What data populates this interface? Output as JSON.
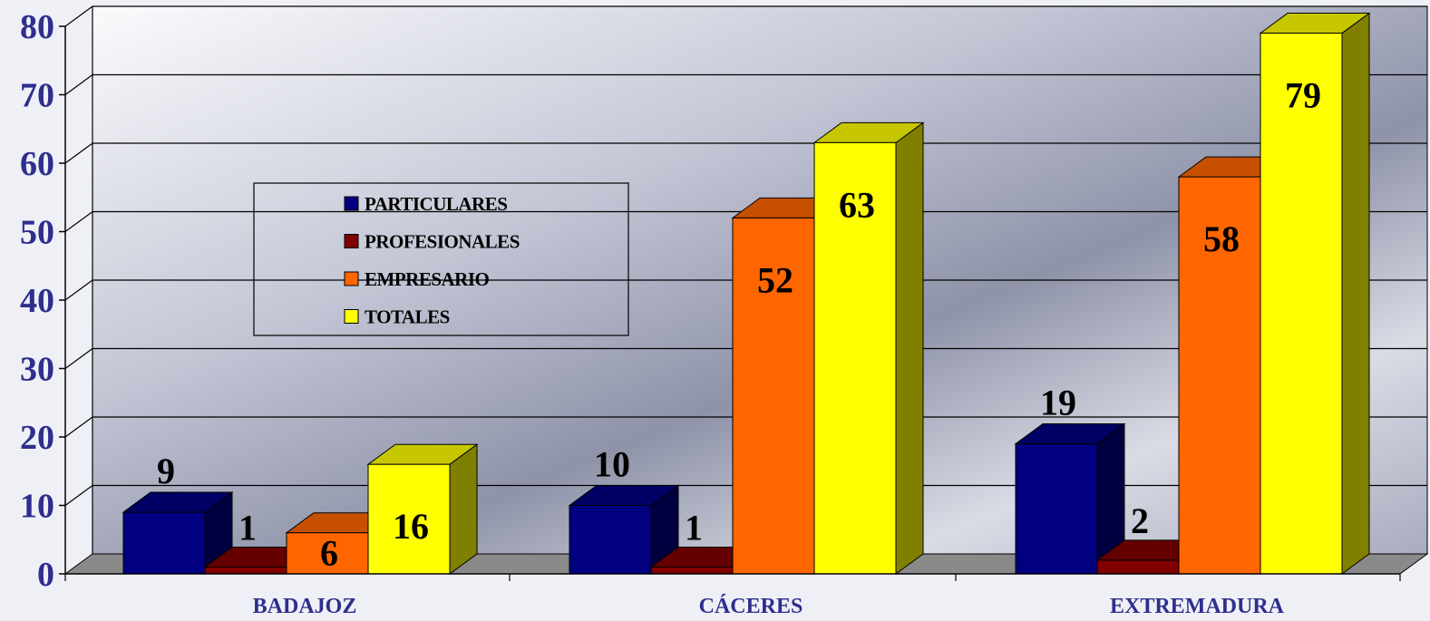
{
  "chart_data": {
    "type": "bar",
    "categories": [
      "BADAJOZ",
      "CÁCERES",
      "EXTREMADURA"
    ],
    "series": [
      {
        "name": "PARTICULARES",
        "values": [
          9,
          10,
          19
        ],
        "color": "#000080"
      },
      {
        "name": "PROFESIONALES",
        "values": [
          1,
          1,
          2
        ],
        "color": "#800000"
      },
      {
        "name": "EMPRESARIO",
        "values": [
          6,
          52,
          58
        ],
        "color": "#FF6600"
      },
      {
        "name": "TOTALES",
        "values": [
          16,
          63,
          79
        ],
        "color": "#FFFF00"
      }
    ],
    "ylim": [
      0,
      80
    ],
    "yticks": [
      "0",
      "10",
      "20",
      "30",
      "40",
      "50",
      "60",
      "70",
      "80"
    ],
    "grid": true,
    "legend_position": "top-left",
    "three_d": true
  }
}
